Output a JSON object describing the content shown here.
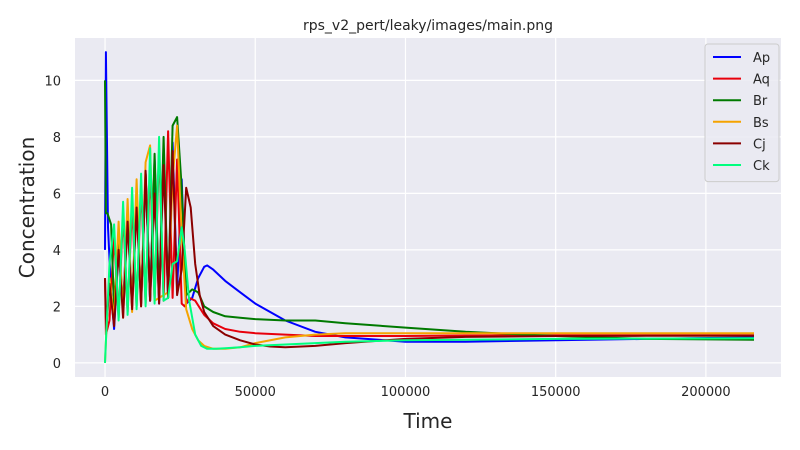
{
  "chart_data": {
    "type": "line",
    "title": "rps_v2_pert/leaky/images/main.png",
    "xlabel": "Time",
    "ylabel": "Concentration",
    "xlim": [
      -10000,
      225000
    ],
    "ylim": [
      -0.5,
      11.5
    ],
    "xticks": [
      0,
      50000,
      100000,
      150000,
      200000
    ],
    "yticks": [
      0,
      2,
      4,
      6,
      8,
      10
    ],
    "grid": true,
    "legend_position": "top-right",
    "background": "#eaeaf2",
    "series": [
      {
        "name": "Ap",
        "color": "#0000ff",
        "x": [
          0,
          300,
          1000,
          2000,
          3000,
          4500,
          6000,
          7500,
          9000,
          10500,
          12000,
          13500,
          15000,
          16500,
          18000,
          19500,
          21000,
          22500,
          24000,
          25500,
          27000,
          29000,
          31000,
          33000,
          34000,
          36000,
          40000,
          45000,
          50000,
          60000,
          70000,
          80000,
          100000,
          120000,
          150000,
          180000,
          216000
        ],
        "y": [
          4,
          11,
          4.8,
          2.5,
          1.2,
          4.0,
          2.1,
          5.3,
          2.0,
          6.0,
          2.1,
          6.7,
          2.2,
          7.2,
          2.1,
          7.6,
          2.3,
          7.8,
          2.6,
          6.5,
          2.1,
          2.3,
          3.0,
          3.4,
          3.45,
          3.3,
          2.9,
          2.5,
          2.1,
          1.5,
          1.1,
          0.9,
          0.75,
          0.75,
          0.8,
          0.85,
          0.9
        ]
      },
      {
        "name": "Aq",
        "color": "#e8000b",
        "x": [
          0,
          300,
          1500,
          3000,
          4500,
          6000,
          7500,
          9000,
          10500,
          12000,
          13500,
          15000,
          16500,
          18000,
          19500,
          21000,
          22500,
          24000,
          25500,
          26500,
          28000,
          30000,
          33000,
          36000,
          40000,
          45000,
          50000,
          60000,
          70000,
          80000,
          100000,
          120000,
          150000,
          180000,
          216000
        ],
        "y": [
          3,
          1.0,
          1.5,
          4.5,
          1.6,
          5.3,
          1.8,
          5.6,
          2.0,
          6.3,
          2.1,
          6.9,
          2.2,
          7.6,
          2.2,
          8.2,
          2.3,
          7.2,
          2.1,
          2.0,
          2.3,
          2.2,
          1.7,
          1.4,
          1.2,
          1.1,
          1.05,
          1.0,
          0.95,
          0.95,
          0.95,
          0.97,
          0.98,
          0.98,
          0.98
        ]
      },
      {
        "name": "Br",
        "color": "#007a00",
        "x": [
          0,
          300,
          800,
          2000,
          3000,
          4500,
          6000,
          7500,
          9000,
          10500,
          12000,
          13500,
          15000,
          16500,
          18000,
          19500,
          21000,
          22500,
          24000,
          25500,
          27000,
          29000,
          31000,
          33000,
          36000,
          40000,
          45000,
          50000,
          60000,
          70000,
          80000,
          100000,
          120000,
          150000,
          180000,
          216000
        ],
        "y": [
          10,
          5.3,
          5.3,
          4.9,
          2.0,
          4.5,
          1.9,
          5.1,
          2.0,
          5.9,
          2.1,
          6.7,
          2.2,
          7.4,
          2.2,
          8.0,
          2.3,
          8.4,
          8.7,
          6.2,
          2.4,
          2.6,
          2.5,
          2.0,
          1.8,
          1.65,
          1.6,
          1.55,
          1.5,
          1.5,
          1.4,
          1.25,
          1.1,
          0.95,
          0.85,
          0.82
        ]
      },
      {
        "name": "Bs",
        "color": "#f5a300",
        "x": [
          0,
          400,
          1500,
          3000,
          4500,
          6000,
          7500,
          9000,
          10500,
          12000,
          13500,
          15000,
          16500,
          18000,
          19500,
          21000,
          22500,
          24000,
          25500,
          27000,
          29000,
          31000,
          33000,
          36000,
          40000,
          45000,
          50000,
          60000,
          70000,
          80000,
          100000,
          120000,
          150000,
          180000,
          216000
        ],
        "y": [
          0,
          1.0,
          3.0,
          1.5,
          5.0,
          1.6,
          5.8,
          1.8,
          6.5,
          2.0,
          7.1,
          7.7,
          2.2,
          2.3,
          2.4,
          2.5,
          6.5,
          8.4,
          4.5,
          1.9,
          1.2,
          0.8,
          0.6,
          0.5,
          0.5,
          0.55,
          0.7,
          0.9,
          1.0,
          1.05,
          1.05,
          1.05,
          1.05,
          1.05,
          1.05
        ]
      },
      {
        "name": "Cj",
        "color": "#8b0000",
        "x": [
          0,
          400,
          1500,
          3000,
          4500,
          6000,
          7500,
          9000,
          10500,
          12000,
          13500,
          15000,
          16500,
          18000,
          19500,
          21000,
          22500,
          24000,
          25500,
          27000,
          28500,
          30000,
          31500,
          33000,
          36000,
          40000,
          45000,
          50000,
          55000,
          60000,
          70000,
          80000,
          100000,
          120000,
          150000,
          180000,
          216000
        ],
        "y": [
          3,
          1.2,
          2.8,
          1.3,
          4.0,
          1.6,
          5.0,
          1.9,
          5.5,
          2.0,
          6.8,
          2.2,
          6.0,
          2.1,
          7.0,
          2.3,
          7.5,
          2.4,
          3.3,
          6.2,
          5.5,
          3.5,
          2.4,
          1.8,
          1.3,
          1.0,
          0.8,
          0.65,
          0.58,
          0.55,
          0.6,
          0.7,
          0.85,
          0.92,
          0.95,
          0.96,
          0.96
        ]
      },
      {
        "name": "Ck",
        "color": "#00ff7f",
        "x": [
          0,
          400,
          1500,
          3000,
          4500,
          6000,
          7500,
          9000,
          10500,
          12000,
          13500,
          15000,
          16500,
          18000,
          19500,
          21000,
          22500,
          24000,
          25500,
          26500,
          28000,
          30000,
          32000,
          34000,
          37000,
          40000,
          45000,
          50000,
          60000,
          70000,
          80000,
          100000,
          120000,
          150000,
          180000,
          216000
        ],
        "y": [
          0,
          1.0,
          3.5,
          4.9,
          1.5,
          5.7,
          1.7,
          6.2,
          1.9,
          6.7,
          2.0,
          7.6,
          2.1,
          8.0,
          2.2,
          2.3,
          3.5,
          3.6,
          4.8,
          4.0,
          2.2,
          1.0,
          0.6,
          0.5,
          0.5,
          0.52,
          0.55,
          0.6,
          0.65,
          0.7,
          0.75,
          0.8,
          0.82,
          0.85,
          0.86,
          0.87
        ]
      }
    ]
  }
}
